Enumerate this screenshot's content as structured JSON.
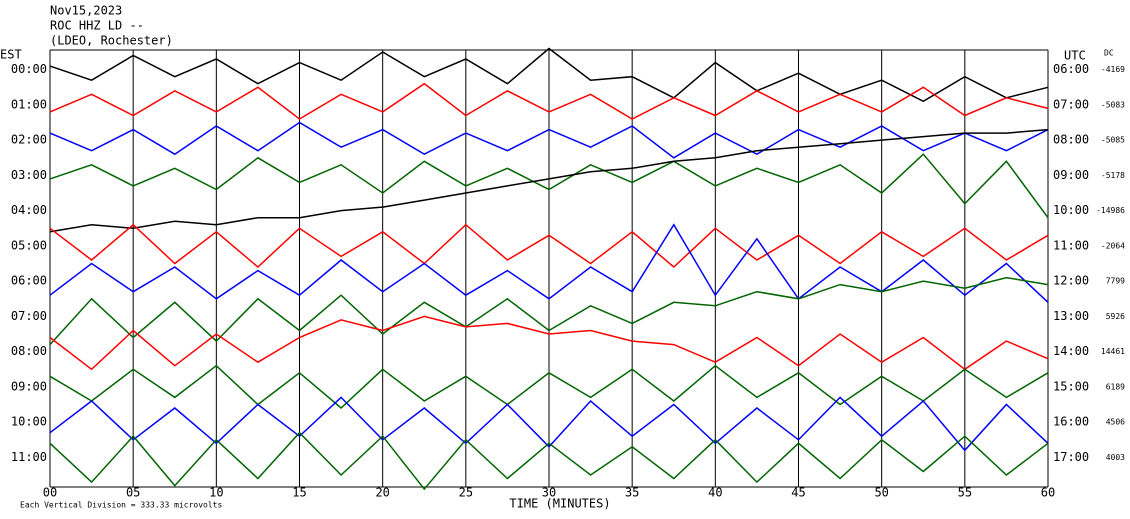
{
  "chart_data": {
    "type": "helicorder",
    "title_lines": [
      "Nov15,2023",
      "ROC HHZ LD --",
      "(LDEO, Rochester)"
    ],
    "left_label": "EST",
    "right_label": "UTC",
    "dc_label": "DC",
    "xlabel": "TIME (MINUTES)",
    "footer": "Each Vertical Division = 333.33 microvolts",
    "xlim": [
      0,
      60
    ],
    "xticks": [
      {
        "value": 0,
        "label": "00"
      },
      {
        "value": 5,
        "label": "05"
      },
      10,
      15,
      20,
      25,
      30,
      35,
      40,
      45,
      50,
      55,
      60
    ],
    "grid": true,
    "x": [
      0,
      2.5,
      5,
      7.5,
      10,
      12.5,
      15,
      17.5,
      20,
      22.5,
      25,
      27.5,
      30,
      32.5,
      35,
      37.5,
      40,
      42.5,
      45,
      47.5,
      50,
      52.5,
      55,
      57.5,
      60
    ],
    "rows": [
      {
        "est": "00:00",
        "utc": "06:00",
        "dc": "-4169",
        "color": "#000000",
        "values": [
          0.1,
          -0.3,
          0.4,
          -0.2,
          0.3,
          -0.4,
          0.2,
          -0.3,
          0.5,
          -0.2,
          0.3,
          -0.4,
          0.6,
          -0.3,
          -0.2,
          -0.8,
          0.2,
          -0.6,
          -0.1,
          -0.7,
          -0.3,
          -0.9,
          -0.2,
          -0.8,
          -0.5
        ]
      },
      {
        "est": "01:00",
        "utc": "07:00",
        "dc": "-5083",
        "color": "#ff0000",
        "values": [
          -0.2,
          0.3,
          -0.3,
          0.4,
          -0.2,
          0.5,
          -0.4,
          0.3,
          -0.2,
          0.6,
          -0.3,
          0.4,
          -0.2,
          0.3,
          -0.4,
          0.2,
          -0.3,
          0.4,
          -0.2,
          0.3,
          -0.2,
          0.5,
          -0.3,
          0.2,
          -0.1
        ]
      },
      {
        "est": "02:00",
        "utc": "08:00",
        "dc": "-5085",
        "color": "#0000ff",
        "values": [
          0.2,
          -0.3,
          0.3,
          -0.4,
          0.4,
          -0.3,
          0.5,
          -0.2,
          0.3,
          -0.4,
          0.2,
          -0.3,
          0.3,
          -0.2,
          0.4,
          -0.5,
          0.2,
          -0.4,
          0.3,
          -0.2,
          0.4,
          -0.3,
          0.2,
          -0.3,
          0.3
        ]
      },
      {
        "est": "03:00",
        "utc": "09:00",
        "dc": "-5178",
        "color": "#006400",
        "values": [
          -0.1,
          0.3,
          -0.3,
          0.2,
          -0.4,
          0.5,
          -0.2,
          0.3,
          -0.5,
          0.4,
          -0.3,
          0.2,
          -0.4,
          0.3,
          -0.2,
          0.4,
          -0.3,
          0.2,
          -0.2,
          0.3,
          -0.5,
          0.6,
          -0.8,
          0.4,
          -1.2
        ]
      },
      {
        "est": "04:00",
        "utc": "10:00",
        "dc": "-14986",
        "color": "#000000",
        "values": [
          -0.6,
          -0.4,
          -0.5,
          -0.3,
          -0.4,
          -0.2,
          -0.2,
          0.0,
          0.1,
          0.3,
          0.5,
          0.7,
          0.9,
          1.1,
          1.2,
          1.4,
          1.5,
          1.7,
          1.8,
          1.9,
          2.0,
          2.1,
          2.2,
          2.2,
          2.3
        ]
      },
      {
        "est": "05:00",
        "utc": "11:00",
        "dc": "-2064",
        "color": "#ff0000",
        "values": [
          0.5,
          -0.4,
          0.6,
          -0.5,
          0.4,
          -0.6,
          0.5,
          -0.3,
          0.4,
          -0.5,
          0.6,
          -0.4,
          0.3,
          -0.5,
          0.4,
          -0.6,
          0.5,
          -0.4,
          0.3,
          -0.5,
          0.4,
          -0.3,
          0.5,
          -0.4,
          0.3
        ]
      },
      {
        "est": "06:00",
        "utc": "12:00",
        "dc": "7799",
        "color": "#0000ff",
        "values": [
          -0.4,
          0.5,
          -0.3,
          0.4,
          -0.5,
          0.3,
          -0.4,
          0.6,
          -0.3,
          0.5,
          -0.4,
          0.3,
          -0.5,
          0.4,
          -0.3,
          1.6,
          -0.4,
          1.2,
          -0.5,
          0.4,
          -0.3,
          0.6,
          -0.4,
          0.5,
          -0.6
        ]
      },
      {
        "est": "07:00",
        "utc": "13:00",
        "dc": "5926",
        "color": "#006400",
        "values": [
          -0.8,
          0.5,
          -0.6,
          0.4,
          -0.7,
          0.5,
          -0.4,
          0.6,
          -0.5,
          0.4,
          -0.3,
          0.5,
          -0.4,
          0.3,
          -0.2,
          0.4,
          0.3,
          0.7,
          0.5,
          0.9,
          0.7,
          1.0,
          0.8,
          1.1,
          0.9
        ]
      },
      {
        "est": "08:00",
        "utc": "14:00",
        "dc": "14461",
        "color": "#ff0000",
        "values": [
          0.4,
          -0.5,
          0.6,
          -0.4,
          0.5,
          -0.3,
          0.4,
          0.9,
          0.6,
          1.0,
          0.7,
          0.8,
          0.5,
          0.6,
          0.3,
          0.2,
          -0.3,
          0.4,
          -0.4,
          0.5,
          -0.3,
          0.4,
          -0.5,
          0.3,
          -0.2
        ]
      },
      {
        "est": "09:00",
        "utc": "15:00",
        "dc": "6189",
        "color": "#006400",
        "values": [
          0.3,
          -0.4,
          0.5,
          -0.3,
          0.6,
          -0.5,
          0.4,
          -0.6,
          0.5,
          -0.4,
          0.3,
          -0.5,
          0.4,
          -0.3,
          0.5,
          -0.4,
          0.6,
          -0.3,
          0.4,
          -0.5,
          0.3,
          -0.4,
          0.5,
          -0.3,
          0.4
        ]
      },
      {
        "est": "10:00",
        "utc": "16:00",
        "dc": "4506",
        "color": "#0000ff",
        "values": [
          -0.3,
          0.6,
          -0.5,
          0.4,
          -0.6,
          0.5,
          -0.4,
          0.7,
          -0.5,
          0.4,
          -0.6,
          0.5,
          -0.7,
          0.6,
          -0.4,
          0.5,
          -0.6,
          0.4,
          -0.5,
          0.7,
          -0.4,
          0.6,
          -0.8,
          0.5,
          -0.6
        ]
      },
      {
        "est": "11:00",
        "utc": "17:00",
        "dc": "4003",
        "color": "#006400",
        "values": [
          0.4,
          -0.7,
          0.6,
          -0.8,
          0.5,
          -0.6,
          0.7,
          -0.5,
          0.6,
          -0.9,
          0.5,
          -0.6,
          0.4,
          -0.5,
          0.3,
          -0.6,
          0.5,
          -0.7,
          0.4,
          -0.6,
          0.5,
          -0.4,
          0.6,
          -0.5,
          0.4
        ]
      }
    ]
  }
}
